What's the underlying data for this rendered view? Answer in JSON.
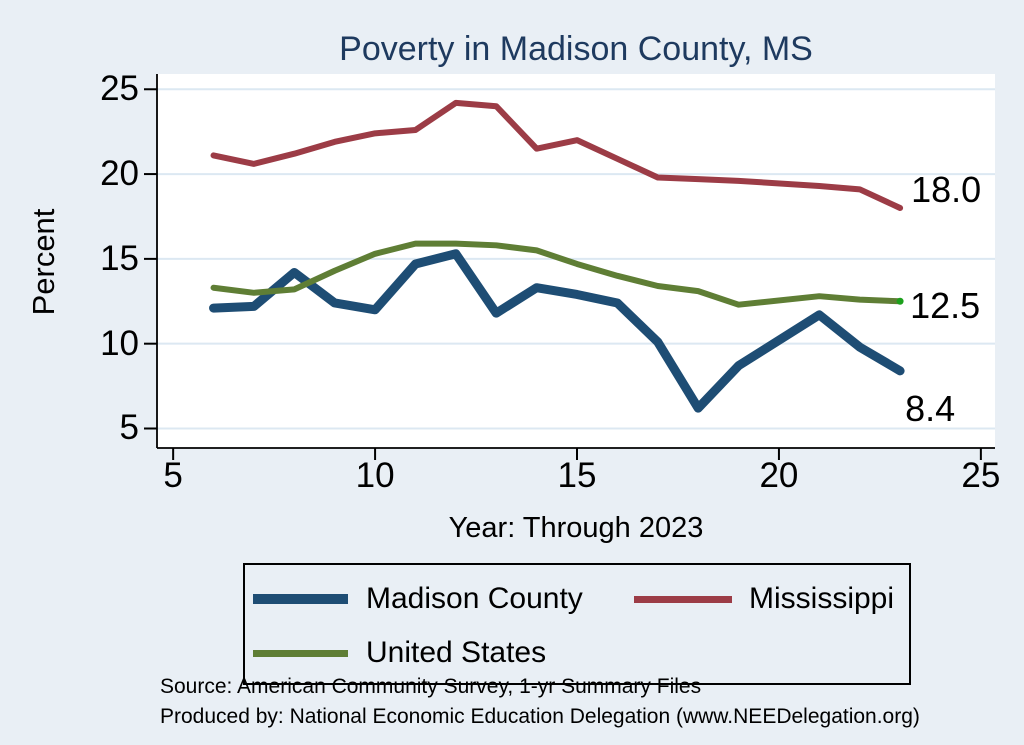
{
  "title": "Poverty in Madison County, MS",
  "x_axis_title": "Year: Through 2023",
  "y_axis_title": "Percent",
  "source": {
    "line1": "Source: American Community Survey, 1-yr Summary Files",
    "line2": "Produced by: National Economic Education Delegation (www.NEEDelegation.org)"
  },
  "colors": {
    "page_background": "#e9eff5",
    "plot_background": "#ffffff",
    "gridline": "#dce8f2",
    "axis": "#000000",
    "title_text": "#1e3a5f",
    "madison_county": "#1e4d74",
    "mississippi": "#9c3c46",
    "united_states": "#5f7e35",
    "united_states_end_marker": "#1ca01c"
  },
  "chart_data": {
    "type": "line",
    "x": [
      6,
      7,
      8,
      9,
      10,
      11,
      12,
      13,
      14,
      15,
      16,
      17,
      18,
      19,
      21,
      22,
      23
    ],
    "series": [
      {
        "name": "Madison County",
        "color": "#1e4d74",
        "stroke_width": 9,
        "values": [
          12.1,
          12.2,
          14.2,
          12.4,
          12.0,
          14.7,
          15.3,
          11.8,
          13.3,
          12.9,
          12.4,
          10.1,
          6.2,
          8.7,
          11.7,
          9.8,
          8.4
        ],
        "end_label": "8.4"
      },
      {
        "name": "Mississippi",
        "color": "#9c3c46",
        "stroke_width": 6,
        "values": [
          21.1,
          20.6,
          21.2,
          21.9,
          22.4,
          22.6,
          24.2,
          24.0,
          21.5,
          22.0,
          20.9,
          19.8,
          19.7,
          19.6,
          19.3,
          19.1,
          18.0
        ],
        "end_label": "18.0"
      },
      {
        "name": "United States",
        "color": "#5f7e35",
        "stroke_width": 6,
        "values": [
          13.3,
          13.0,
          13.2,
          14.3,
          15.3,
          15.9,
          15.9,
          15.8,
          15.5,
          14.7,
          14.0,
          13.4,
          13.1,
          12.3,
          12.8,
          12.6,
          12.5
        ],
        "end_label": "12.5",
        "end_marker_color": "#1ca01c"
      }
    ],
    "x_ticks": [
      "5",
      "10",
      "15",
      "20",
      "25"
    ],
    "y_ticks": [
      "5",
      "10",
      "15",
      "20",
      "25"
    ],
    "xlim": [
      4.6,
      25.35
    ],
    "ylim": [
      3.85,
      25.9
    ],
    "grid": true,
    "legend_position": "bottom"
  },
  "legend": {
    "items": [
      {
        "label": "Madison County"
      },
      {
        "label": "Mississippi"
      },
      {
        "label": "United States"
      }
    ]
  }
}
